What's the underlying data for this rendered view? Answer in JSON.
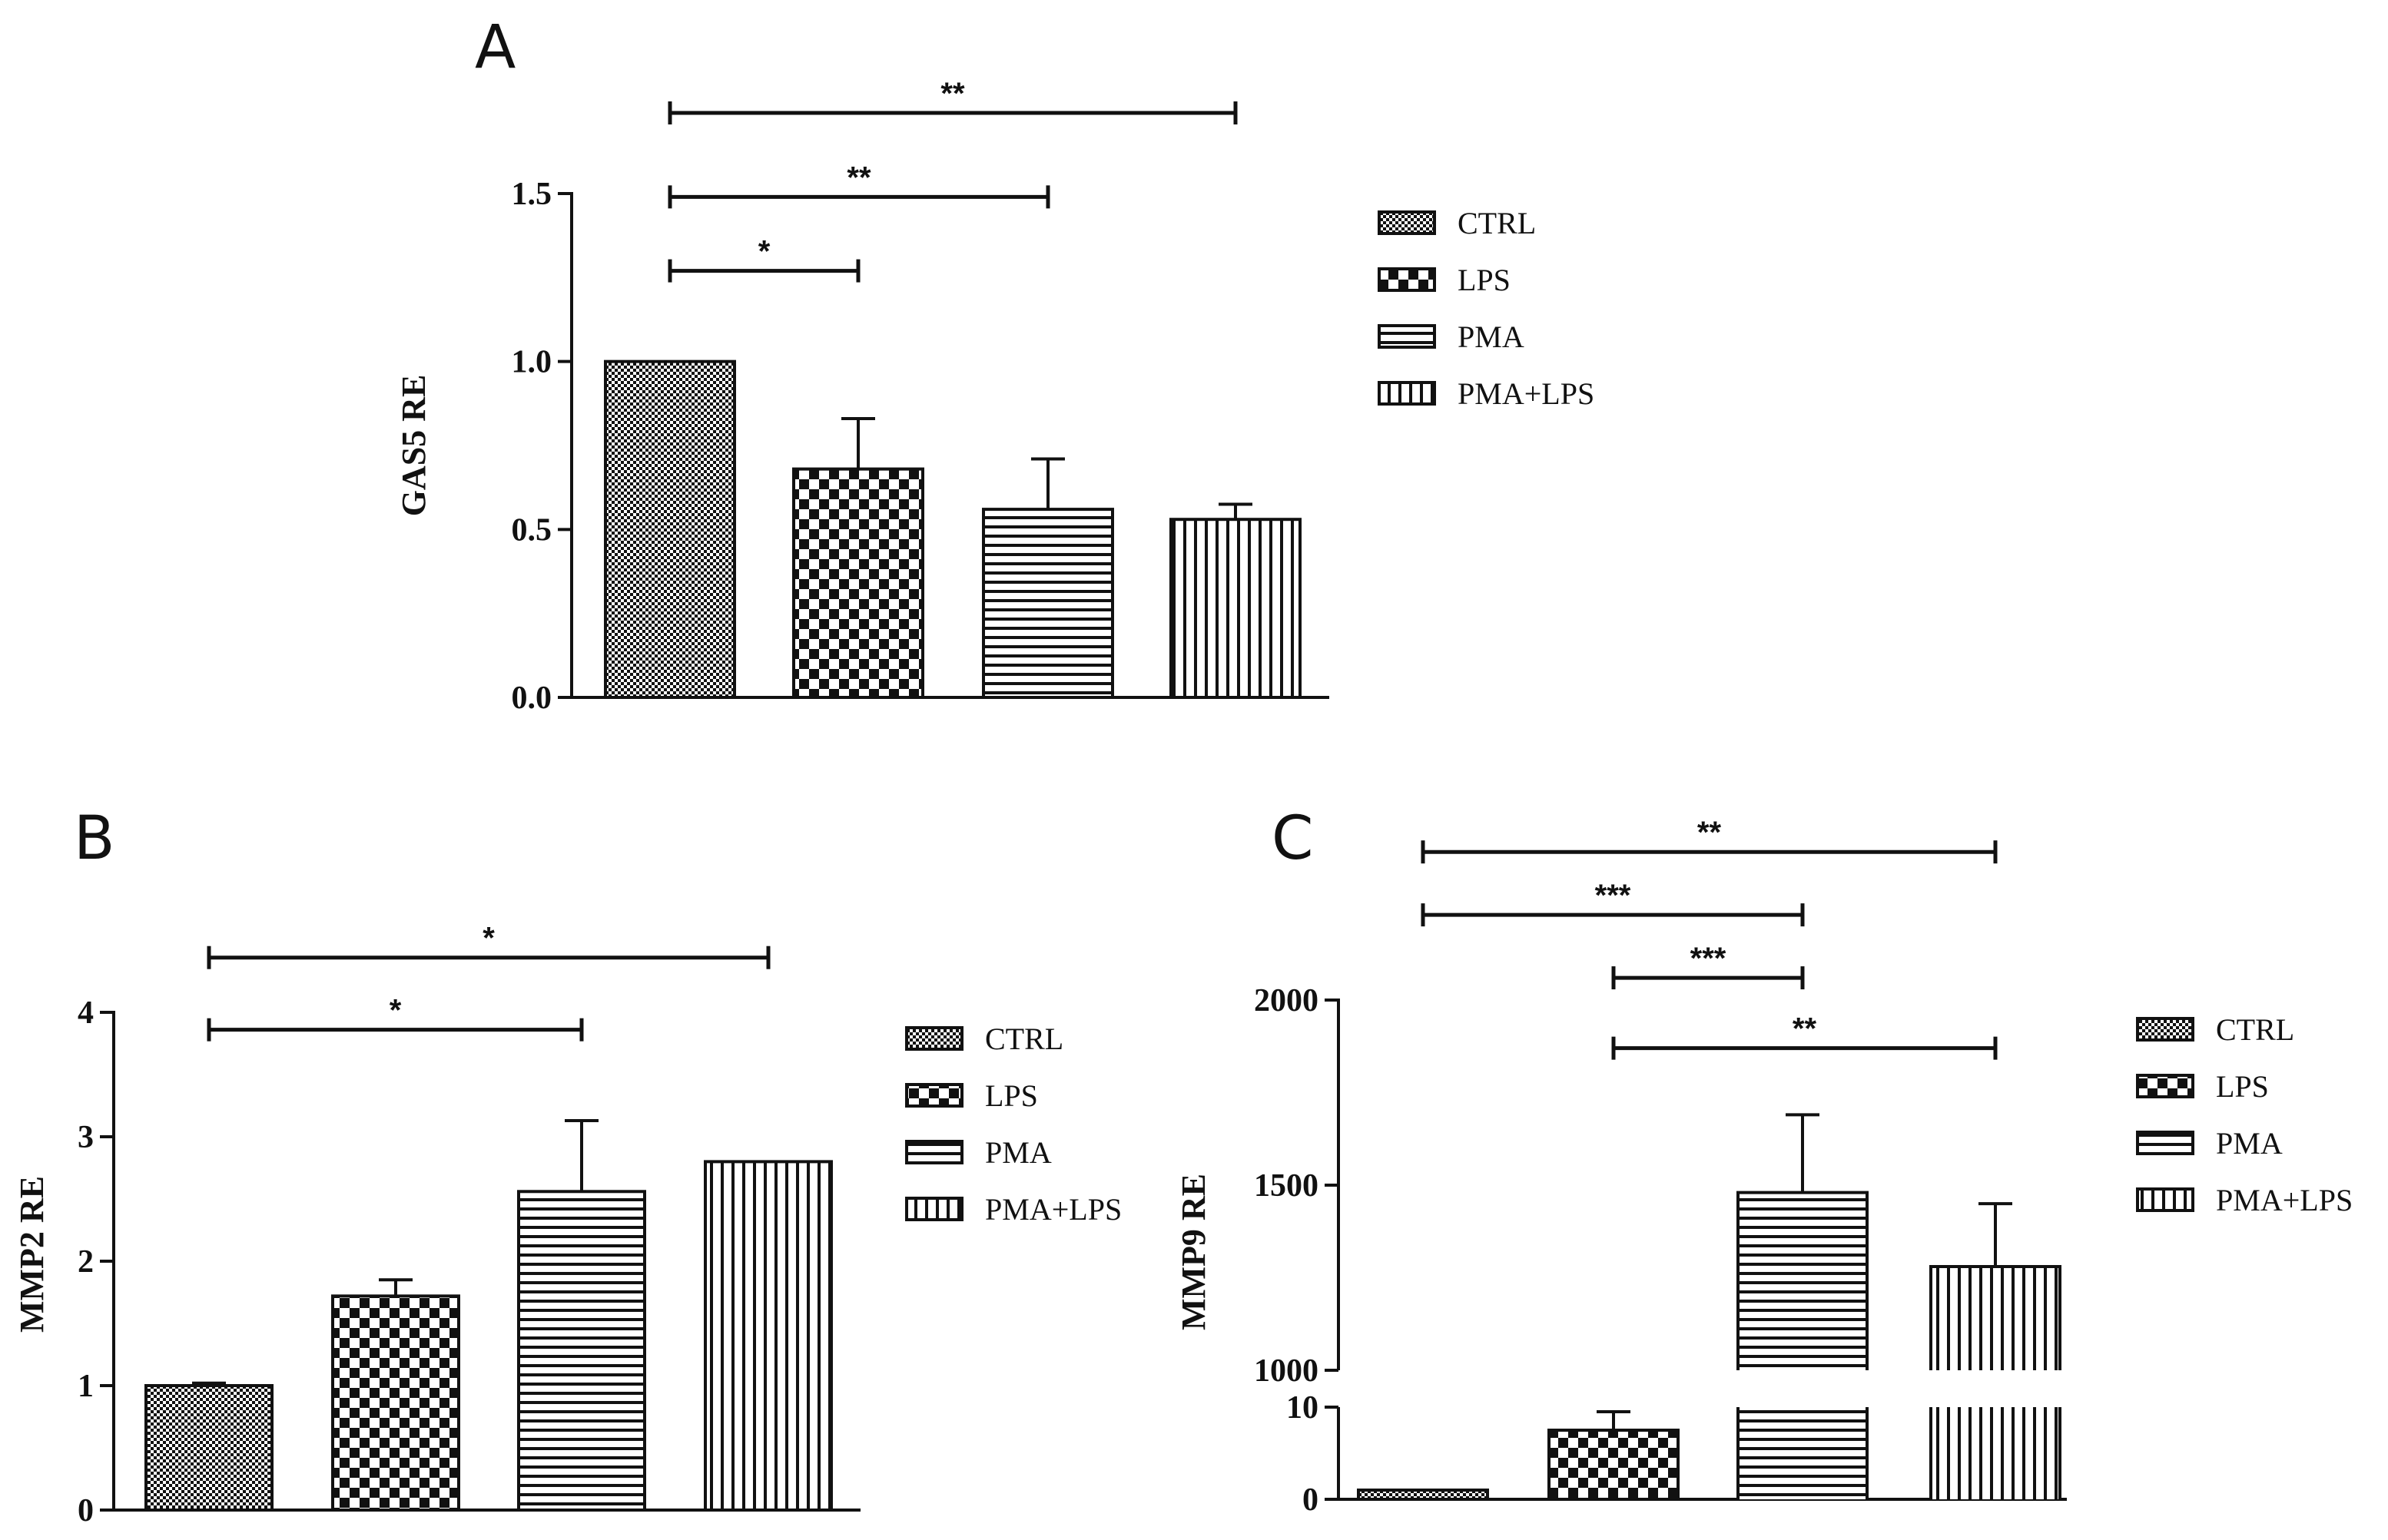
{
  "colors": {
    "ink": "#111111",
    "background": "#ffffff"
  },
  "chart_data": [
    {
      "panel": "A",
      "type": "bar",
      "title": "",
      "xlabel": "",
      "ylabel": "GAS5 RE",
      "categories": [
        "CTRL",
        "LPS",
        "PMA",
        "PMA+LPS"
      ],
      "patterns": [
        "dense",
        "checker",
        "hstripe",
        "vstripe"
      ],
      "values": [
        1.0,
        0.68,
        0.56,
        0.53
      ],
      "errors": [
        0.0,
        0.15,
        0.15,
        0.045
      ],
      "ylim": [
        0,
        1.5
      ],
      "ticks": [
        0,
        0.5,
        1.0,
        1.5
      ],
      "tick_labels": [
        "0.0",
        "0.5",
        "1.0",
        "1.5"
      ],
      "legend": [
        "CTRL",
        "LPS",
        "PMA",
        "PMA+LPS"
      ],
      "legend_position": "right",
      "significance": [
        {
          "from": 0,
          "to": 1,
          "label": "*",
          "level": 1.27
        },
        {
          "from": 0,
          "to": 2,
          "label": "**",
          "level": 1.49
        },
        {
          "from": 0,
          "to": 3,
          "label": "**",
          "level": 1.74
        }
      ]
    },
    {
      "panel": "B",
      "type": "bar",
      "title": "",
      "xlabel": "",
      "ylabel": "MMP2 RE",
      "categories": [
        "CTRL",
        "LPS",
        "PMA",
        "PMA+LPS"
      ],
      "patterns": [
        "dense",
        "checker",
        "hstripe",
        "vstripe"
      ],
      "values": [
        1.0,
        1.72,
        2.56,
        2.8
      ],
      "errors": [
        0.02,
        0.13,
        0.57,
        0.0
      ],
      "ylim": [
        0,
        4
      ],
      "ticks": [
        0,
        1,
        2,
        3,
        4
      ],
      "tick_labels": [
        "0",
        "1",
        "2",
        "3",
        "4"
      ],
      "legend": [
        "CTRL",
        "LPS",
        "PMA",
        "PMA+LPS"
      ],
      "legend_position": "right",
      "significance": [
        {
          "from": 0,
          "to": 2,
          "label": "*",
          "level": 3.86
        },
        {
          "from": 0,
          "to": 3,
          "label": "*",
          "level": 4.44
        }
      ]
    },
    {
      "panel": "C",
      "type": "bar",
      "title": "",
      "xlabel": "",
      "ylabel": "MMP9 RE",
      "axis_break": {
        "lower": [
          0,
          10
        ],
        "upper": [
          1000,
          2000
        ]
      },
      "categories": [
        "CTRL",
        "LPS",
        "PMA",
        "PMA+LPS"
      ],
      "patterns": [
        "dense",
        "checker",
        "hstripe",
        "vstripe"
      ],
      "values": [
        1.0,
        7.5,
        1480,
        1280
      ],
      "errors": [
        0.0,
        2.0,
        210,
        170
      ],
      "ticks_lower": [
        0,
        10
      ],
      "ticks_upper": [
        1000,
        1500,
        2000
      ],
      "tick_labels_lower": [
        "0",
        "10"
      ],
      "tick_labels_upper": [
        "1000",
        "1500",
        "2000"
      ],
      "legend": [
        "CTRL",
        "LPS",
        "PMA",
        "PMA+LPS"
      ],
      "legend_position": "right",
      "significance": [
        {
          "from": 1,
          "to": 3,
          "label": "**",
          "level": 1870
        },
        {
          "from": 1,
          "to": 2,
          "label": "***",
          "level": 2060
        },
        {
          "from": 0,
          "to": 2,
          "label": "***",
          "level": 2230
        },
        {
          "from": 0,
          "to": 3,
          "label": "**",
          "level": 2400
        }
      ]
    }
  ]
}
